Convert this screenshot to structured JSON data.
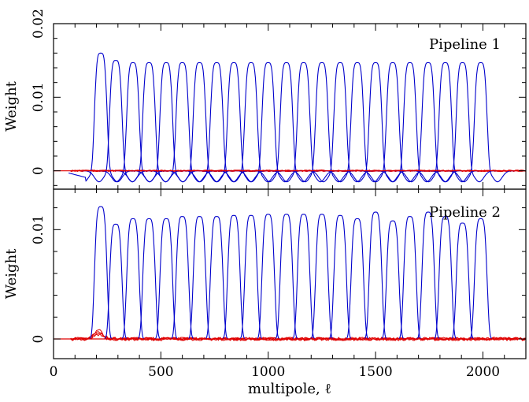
{
  "chart_data": [
    {
      "type": "line",
      "panel_label": "Pipeline 1",
      "ylabel": "Weight",
      "xlabel": "",
      "xlim": [
        0,
        2200
      ],
      "ylim": [
        -0.0025,
        0.02
      ],
      "yticks": [
        0,
        0.01,
        0.02
      ],
      "ytick_labels": [
        "0",
        "0.01",
        "0.02"
      ],
      "xticks": [
        0,
        500,
        1000,
        1500,
        2000
      ],
      "xtick_labels": [],
      "window": {
        "shape": "band",
        "half_width": 45,
        "side_lobe": -0.0015,
        "sigma": 30
      },
      "peaks": [
        {
          "center": 220,
          "peak": 0.016
        },
        {
          "center": 290,
          "peak": 0.015
        },
        {
          "center": 370,
          "peak": 0.0147
        },
        {
          "center": 445,
          "peak": 0.0147
        },
        {
          "center": 525,
          "peak": 0.0147
        },
        {
          "center": 600,
          "peak": 0.0147
        },
        {
          "center": 680,
          "peak": 0.0147
        },
        {
          "center": 760,
          "peak": 0.0147
        },
        {
          "center": 840,
          "peak": 0.0147
        },
        {
          "center": 920,
          "peak": 0.0147
        },
        {
          "center": 1000,
          "peak": 0.0147
        },
        {
          "center": 1085,
          "peak": 0.0147
        },
        {
          "center": 1165,
          "peak": 0.0147
        },
        {
          "center": 1250,
          "peak": 0.0147
        },
        {
          "center": 1335,
          "peak": 0.0147
        },
        {
          "center": 1415,
          "peak": 0.0147
        },
        {
          "center": 1500,
          "peak": 0.0147
        },
        {
          "center": 1580,
          "peak": 0.0147
        },
        {
          "center": 1660,
          "peak": 0.0147
        },
        {
          "center": 1745,
          "peak": 0.0147
        },
        {
          "center": 1825,
          "peak": 0.0147
        },
        {
          "center": 1905,
          "peak": 0.0147
        },
        {
          "center": 1990,
          "peak": 0.0147
        }
      ],
      "red_noise_amplitude": 0.0002,
      "blue_color": "#0000cc",
      "red_color": "#e00000"
    },
    {
      "type": "line",
      "panel_label": "Pipeline 2",
      "ylabel": "Weight",
      "xlabel": "multipole, ℓ",
      "xlim": [
        0,
        2200
      ],
      "ylim": [
        -0.0018,
        0.0137
      ],
      "yticks": [
        0,
        0.01
      ],
      "ytick_labels": [
        "0",
        "0.01"
      ],
      "xticks": [
        0,
        500,
        1000,
        1500,
        2000
      ],
      "xtick_labels": [
        "0",
        "500",
        "1000",
        "1500",
        "2000"
      ],
      "window": {
        "shape": "band",
        "half_width": 45,
        "side_lobe": 0,
        "sigma": 30
      },
      "peaks": [
        {
          "center": 220,
          "peak": 0.0121
        },
        {
          "center": 290,
          "peak": 0.0105
        },
        {
          "center": 370,
          "peak": 0.011
        },
        {
          "center": 445,
          "peak": 0.011
        },
        {
          "center": 525,
          "peak": 0.011
        },
        {
          "center": 600,
          "peak": 0.0112
        },
        {
          "center": 680,
          "peak": 0.0112
        },
        {
          "center": 760,
          "peak": 0.0112
        },
        {
          "center": 840,
          "peak": 0.0113
        },
        {
          "center": 920,
          "peak": 0.0113
        },
        {
          "center": 1000,
          "peak": 0.0114
        },
        {
          "center": 1085,
          "peak": 0.0114
        },
        {
          "center": 1165,
          "peak": 0.0114
        },
        {
          "center": 1250,
          "peak": 0.0114
        },
        {
          "center": 1335,
          "peak": 0.0113
        },
        {
          "center": 1415,
          "peak": 0.011
        },
        {
          "center": 1500,
          "peak": 0.0116
        },
        {
          "center": 1580,
          "peak": 0.0108
        },
        {
          "center": 1660,
          "peak": 0.0112
        },
        {
          "center": 1745,
          "peak": 0.0116
        },
        {
          "center": 1825,
          "peak": 0.0112
        },
        {
          "center": 1905,
          "peak": 0.0106
        },
        {
          "center": 1990,
          "peak": 0.011
        }
      ],
      "red_noise_amplitude": 0.0003,
      "blue_color": "#0000cc",
      "red_color": "#e00000"
    }
  ]
}
